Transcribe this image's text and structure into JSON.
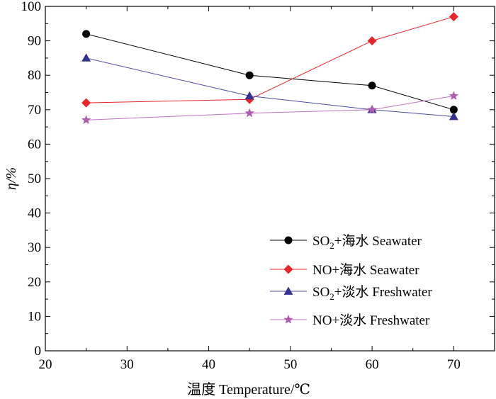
{
  "chart_data": {
    "type": "line",
    "title": "",
    "xlabel": "温度 Temperature/℃",
    "ylabel": "η/%",
    "xlim": [
      20,
      75
    ],
    "ylim": [
      0,
      100
    ],
    "xticks": [
      20,
      30,
      40,
      50,
      60,
      70
    ],
    "yticks": [
      0,
      10,
      20,
      30,
      40,
      50,
      60,
      70,
      80,
      90,
      100
    ],
    "grid": false,
    "legend_position": "bottom-right",
    "x": [
      25,
      45,
      60,
      70
    ],
    "series": [
      {
        "name": "SO2+海水 Seawater",
        "label_main": "SO",
        "label_sub": "2",
        "label_rest": "+海水 Seawater",
        "marker": "circle",
        "color": "#000000",
        "line_color": "#000000",
        "values": [
          92,
          80,
          77,
          70
        ]
      },
      {
        "name": "NO+海水 Seawater",
        "label_main": "NO+海水  Seawater",
        "label_sub": "",
        "label_rest": "",
        "marker": "diamond",
        "color": "#e8262a",
        "line_color": "#e8262a",
        "values": [
          72,
          73,
          90,
          97
        ]
      },
      {
        "name": "SO2+淡水 Freshwater",
        "label_main": "SO",
        "label_sub": "2",
        "label_rest": "+淡水 Freshwater",
        "marker": "triangle",
        "color": "#33338f",
        "line_color": "#4a4aa8",
        "values": [
          85,
          74,
          70,
          68
        ]
      },
      {
        "name": "NO+淡水 Freshwater",
        "label_main": "NO+淡水  Freshwater",
        "label_sub": "",
        "label_rest": "",
        "marker": "star",
        "color": "#b05bb0",
        "line_color": "#c070c0",
        "values": [
          67,
          69,
          70,
          74
        ]
      }
    ]
  }
}
